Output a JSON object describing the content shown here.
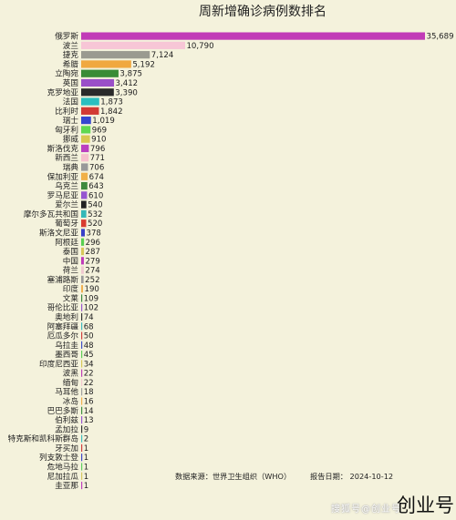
{
  "chart_data": {
    "type": "bar",
    "orientation": "horizontal",
    "title": "周新增确诊病例数排名",
    "categories": [
      "俄罗斯",
      "波兰",
      "捷克",
      "希腊",
      "立陶宛",
      "英国",
      "克罗地亚",
      "法国",
      "比利时",
      "瑞士",
      "匈牙利",
      "挪威",
      "斯洛伐克",
      "新西兰",
      "瑞典",
      "保加利亚",
      "乌克兰",
      "罗马尼亚",
      "爱尔兰",
      "摩尔多瓦共和国",
      "葡萄牙",
      "斯洛文尼亚",
      "阿根廷",
      "泰国",
      "中国",
      "荷兰",
      "塞浦路斯",
      "印度",
      "文莱",
      "哥伦比亚",
      "奥地利",
      "阿塞拜疆",
      "厄瓜多尔",
      "乌拉圭",
      "墨西哥",
      "印度尼西亚",
      "波黑",
      "缅甸",
      "马耳他",
      "冰岛",
      "巴巴多斯",
      "伯利兹",
      "孟加拉",
      "特克斯和凯科斯群岛",
      "牙买加",
      "列支敦士登",
      "危地马拉",
      "尼加拉瓜",
      "圭亚那"
    ],
    "values": [
      35689,
      10790,
      7124,
      5192,
      3875,
      3412,
      3390,
      1873,
      1842,
      1019,
      969,
      910,
      796,
      771,
      706,
      674,
      643,
      610,
      540,
      532,
      520,
      378,
      296,
      287,
      279,
      274,
      252,
      190,
      109,
      102,
      74,
      68,
      50,
      48,
      45,
      34,
      22,
      22,
      18,
      16,
      14,
      13,
      9,
      2,
      1,
      1,
      1,
      1,
      1
    ],
    "value_labels": [
      "35,689",
      "10,790",
      "7,124",
      "5,192",
      "3,875",
      "3,412",
      "3,390",
      "1,873",
      "1,842",
      "1,019",
      "969",
      "910",
      "796",
      "771",
      "706",
      "674",
      "643",
      "610",
      "540",
      "532",
      "520",
      "378",
      "296",
      "287",
      "279",
      "274",
      "252",
      "190",
      "109",
      "102",
      "74",
      "68",
      "50",
      "48",
      "45",
      "34",
      "22",
      "22",
      "18",
      "16",
      "14",
      "13",
      "9",
      "2",
      "1",
      "1",
      "1",
      "1",
      "1"
    ],
    "colors": [
      "#c13bb7",
      "#f7c6d6",
      "#9a9a90",
      "#f0a840",
      "#3a8c36",
      "#9a4fc8",
      "#2a2a2a",
      "#2bbfc0",
      "#d23a34",
      "#3446d0",
      "#5fd850",
      "#d8c850",
      "#bb40c0",
      "#f6c0cc",
      "#999999",
      "#f0b048",
      "#3e8a3e",
      "#9655d0",
      "#222222",
      "#35b8b8",
      "#d83c30",
      "#3840c8",
      "#58d050",
      "#d8c858",
      "#c038b8",
      "#f0c8d0",
      "#9a9a9a",
      "#f0b050",
      "#3e8a3e",
      "#9a58d0",
      "#333333",
      "#40b8c0",
      "#d04040",
      "#4050c8",
      "#60d058",
      "#d8c858",
      "#c040b8",
      "#f4c8d0",
      "#a0a0a0",
      "#f0b050",
      "#409040",
      "#9a58d0",
      "#333333",
      "#40c0c0",
      "#d04040",
      "#4048c8",
      "#60d060",
      "#d8c860",
      "#c040c0"
    ],
    "xlim": [
      0,
      35689
    ]
  },
  "footer": {
    "source": "数据来源：世界卫生组织（WHO）",
    "date": "报告日期：  2024-10-12"
  },
  "branding": {
    "logo": "创业号",
    "watermark": "搜狐号@创业号"
  }
}
